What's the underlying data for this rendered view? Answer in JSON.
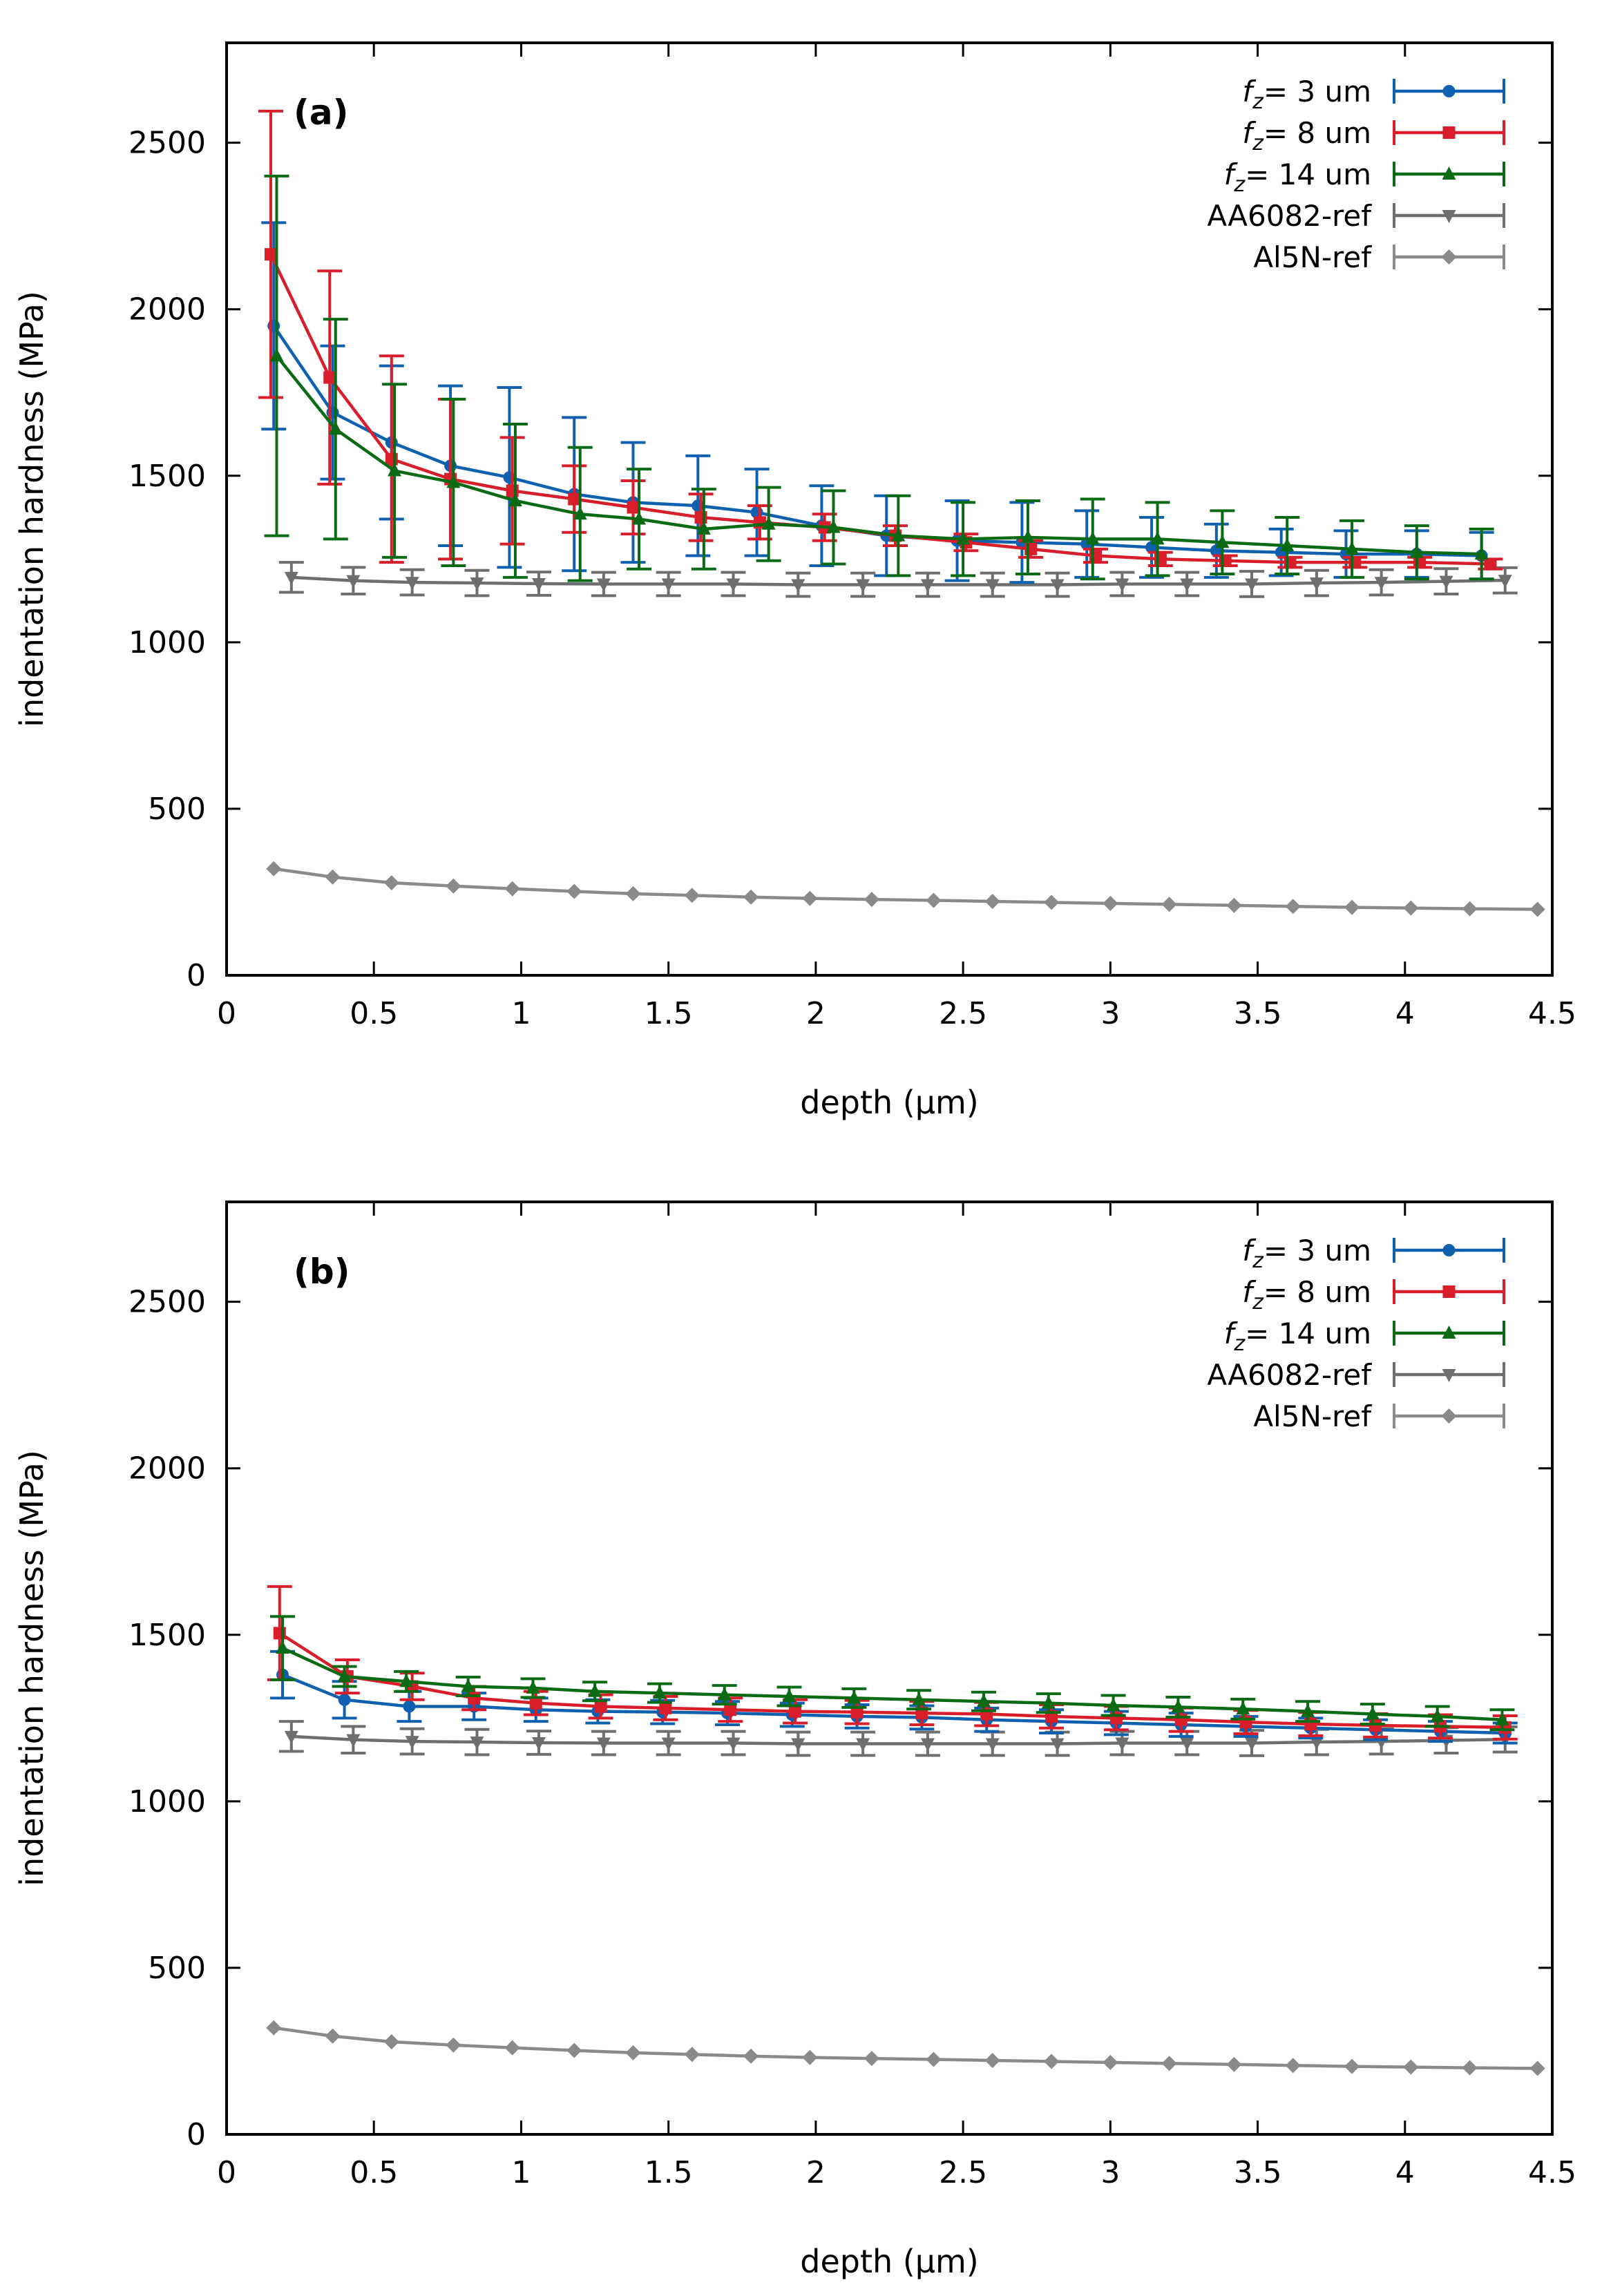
{
  "chart_data": [
    {
      "type": "line",
      "panel_label": "(a)",
      "xlabel": "depth (µm)",
      "ylabel": "indentation hardness (MPa)",
      "xlim": [
        0,
        4.5
      ],
      "ylim": [
        0,
        2800
      ],
      "xticks": [
        0,
        0.5,
        1,
        1.5,
        2,
        2.5,
        3,
        3.5,
        4,
        4.5
      ],
      "xtick_labels": [
        "0",
        "0.5",
        "1",
        "1.5",
        "2",
        "2.5",
        "3",
        "3.5",
        "4",
        "4.5"
      ],
      "yticks": [
        0,
        500,
        1000,
        1500,
        2000,
        2500
      ],
      "ytick_labels": [
        "0",
        "500",
        "1000",
        "1500",
        "2000",
        "2500"
      ],
      "legend_position": "top-right",
      "series": [
        {
          "name": "fz= 3 um",
          "legend_prefix": "f",
          "legend_sub": "z",
          "legend_suffix": "= 3 um",
          "color": "#1060b0",
          "marker": "circle",
          "errorbars": true,
          "x": [
            0.16,
            0.36,
            0.56,
            0.76,
            0.96,
            1.18,
            1.38,
            1.6,
            1.8,
            2.02,
            2.24,
            2.48,
            2.7,
            2.92,
            3.14,
            3.36,
            3.58,
            3.8,
            4.04,
            4.26
          ],
          "y": [
            1950,
            1690,
            1600,
            1530,
            1495,
            1445,
            1420,
            1410,
            1390,
            1350,
            1320,
            1305,
            1300,
            1295,
            1285,
            1275,
            1270,
            1265,
            1265,
            1260
          ],
          "err": [
            310,
            200,
            230,
            240,
            270,
            230,
            180,
            150,
            130,
            120,
            120,
            120,
            120,
            100,
            90,
            80,
            70,
            70,
            70,
            70
          ]
        },
        {
          "name": "fz= 8 um",
          "legend_prefix": "f",
          "legend_sub": "z",
          "legend_suffix": "= 8 um",
          "color": "#d81e2a",
          "marker": "square",
          "errorbars": true,
          "x": [
            0.15,
            0.35,
            0.56,
            0.76,
            0.97,
            1.18,
            1.38,
            1.61,
            1.81,
            2.03,
            2.27,
            2.51,
            2.73,
            2.95,
            3.17,
            3.39,
            3.61,
            3.83,
            4.05,
            4.29
          ],
          "y": [
            2165,
            1795,
            1550,
            1490,
            1455,
            1430,
            1405,
            1375,
            1360,
            1345,
            1320,
            1300,
            1280,
            1260,
            1250,
            1245,
            1240,
            1240,
            1240,
            1235
          ],
          "err": [
            430,
            320,
            310,
            240,
            160,
            100,
            80,
            70,
            50,
            40,
            30,
            25,
            25,
            20,
            20,
            15,
            15,
            15,
            15,
            15
          ]
        },
        {
          "name": "fz= 14 um",
          "legend_prefix": "f",
          "legend_sub": "z",
          "legend_suffix": "= 14 um",
          "color": "#0a6b14",
          "marker": "triangle",
          "errorbars": true,
          "x": [
            0.17,
            0.37,
            0.57,
            0.77,
            0.98,
            1.2,
            1.4,
            1.62,
            1.84,
            2.06,
            2.28,
            2.5,
            2.72,
            2.94,
            3.16,
            3.38,
            3.6,
            3.82,
            4.04,
            4.26
          ],
          "y": [
            1860,
            1640,
            1515,
            1480,
            1425,
            1385,
            1370,
            1340,
            1355,
            1345,
            1320,
            1310,
            1315,
            1310,
            1310,
            1300,
            1290,
            1280,
            1270,
            1265
          ],
          "err": [
            540,
            330,
            260,
            250,
            230,
            200,
            150,
            120,
            110,
            110,
            120,
            110,
            110,
            120,
            110,
            95,
            85,
            85,
            80,
            75
          ]
        },
        {
          "name": "AA6082-ref",
          "legend_prefix": "AA6082-ref",
          "legend_sub": "",
          "legend_suffix": "",
          "color": "#6e6e6e",
          "marker": "triangle-down",
          "errorbars": true,
          "x": [
            0.22,
            0.43,
            0.63,
            0.85,
            1.06,
            1.28,
            1.5,
            1.72,
            1.94,
            2.16,
            2.38,
            2.6,
            2.82,
            3.04,
            3.26,
            3.48,
            3.7,
            3.92,
            4.14,
            4.34
          ],
          "y": [
            1195,
            1185,
            1180,
            1178,
            1176,
            1175,
            1175,
            1175,
            1173,
            1173,
            1173,
            1173,
            1173,
            1175,
            1175,
            1175,
            1178,
            1180,
            1183,
            1186
          ],
          "err": [
            45,
            40,
            38,
            38,
            35,
            35,
            35,
            35,
            35,
            35,
            35,
            35,
            35,
            35,
            35,
            38,
            38,
            38,
            38,
            38
          ]
        },
        {
          "name": "Al5N-ref",
          "legend_prefix": "Al5N-ref",
          "legend_sub": "",
          "legend_suffix": "",
          "color": "#8a8a8a",
          "marker": "diamond",
          "errorbars": false,
          "x": [
            0.16,
            0.36,
            0.56,
            0.77,
            0.97,
            1.18,
            1.38,
            1.58,
            1.78,
            1.98,
            2.19,
            2.4,
            2.6,
            2.8,
            3.0,
            3.2,
            3.42,
            3.62,
            3.82,
            4.02,
            4.22,
            4.45
          ],
          "y": [
            320,
            295,
            278,
            268,
            260,
            252,
            245,
            240,
            235,
            231,
            228,
            225,
            222,
            219,
            216,
            213,
            210,
            207,
            204,
            202,
            200,
            198
          ],
          "err": []
        }
      ]
    },
    {
      "type": "line",
      "panel_label": "(b)",
      "xlabel": "depth (µm)",
      "ylabel": "indentation hardness (MPa)",
      "xlim": [
        0,
        4.5
      ],
      "ylim": [
        0,
        2800
      ],
      "xticks": [
        0,
        0.5,
        1,
        1.5,
        2,
        2.5,
        3,
        3.5,
        4,
        4.5
      ],
      "xtick_labels": [
        "0",
        "0.5",
        "1",
        "1.5",
        "2",
        "2.5",
        "3",
        "3.5",
        "4",
        "4.5"
      ],
      "yticks": [
        0,
        500,
        1000,
        1500,
        2000,
        2500
      ],
      "ytick_labels": [
        "0",
        "500",
        "1000",
        "1500",
        "2000",
        "2500"
      ],
      "legend_position": "top-right",
      "series": [
        {
          "name": "fz= 3 um",
          "legend_prefix": "f",
          "legend_sub": "z",
          "legend_suffix": "= 3 um",
          "color": "#1060b0",
          "marker": "circle",
          "errorbars": true,
          "x": [
            0.19,
            0.4,
            0.62,
            0.84,
            1.05,
            1.26,
            1.48,
            1.7,
            1.92,
            2.14,
            2.36,
            2.58,
            2.8,
            3.02,
            3.24,
            3.46,
            3.68,
            3.9,
            4.12,
            4.34
          ],
          "y": [
            1380,
            1305,
            1285,
            1285,
            1275,
            1270,
            1268,
            1265,
            1260,
            1255,
            1252,
            1245,
            1240,
            1235,
            1230,
            1225,
            1220,
            1215,
            1210,
            1205
          ],
          "err": [
            70,
            55,
            45,
            40,
            35,
            35,
            35,
            35,
            35,
            35,
            35,
            35,
            35,
            35,
            35,
            30,
            30,
            30,
            30,
            30
          ]
        },
        {
          "name": "fz= 8 um",
          "legend_prefix": "f",
          "legend_sub": "z",
          "legend_suffix": "= 8 um",
          "color": "#d81e2a",
          "marker": "square",
          "errorbars": true,
          "x": [
            0.18,
            0.41,
            0.63,
            0.84,
            1.05,
            1.27,
            1.49,
            1.71,
            1.93,
            2.14,
            2.36,
            2.58,
            2.8,
            3.02,
            3.24,
            3.46,
            3.68,
            3.9,
            4.12,
            4.34
          ],
          "y": [
            1505,
            1375,
            1345,
            1310,
            1295,
            1285,
            1280,
            1275,
            1270,
            1268,
            1265,
            1262,
            1255,
            1250,
            1245,
            1238,
            1232,
            1228,
            1225,
            1222
          ],
          "err": [
            140,
            50,
            40,
            35,
            35,
            35,
            35,
            35,
            35,
            35,
            35,
            35,
            35,
            35,
            35,
            35,
            35,
            35,
            35,
            35
          ]
        },
        {
          "name": "fz= 14 um",
          "legend_prefix": "f",
          "legend_sub": "z",
          "legend_suffix": "= 14 um",
          "color": "#0a6b14",
          "marker": "triangle",
          "errorbars": true,
          "x": [
            0.19,
            0.4,
            0.61,
            0.82,
            1.04,
            1.25,
            1.47,
            1.69,
            1.91,
            2.13,
            2.35,
            2.57,
            2.79,
            3.01,
            3.23,
            3.45,
            3.67,
            3.89,
            4.11,
            4.33
          ],
          "y": [
            1460,
            1375,
            1360,
            1345,
            1340,
            1330,
            1325,
            1320,
            1315,
            1310,
            1305,
            1300,
            1295,
            1288,
            1283,
            1277,
            1270,
            1262,
            1255,
            1245
          ],
          "err": [
            95,
            30,
            30,
            28,
            28,
            28,
            28,
            28,
            28,
            28,
            28,
            28,
            28,
            30,
            30,
            30,
            30,
            30,
            30,
            30
          ]
        },
        {
          "name": "AA6082-ref",
          "legend_prefix": "AA6082-ref",
          "legend_sub": "",
          "legend_suffix": "",
          "color": "#6e6e6e",
          "marker": "triangle-down",
          "errorbars": true,
          "x": [
            0.22,
            0.43,
            0.63,
            0.85,
            1.06,
            1.28,
            1.5,
            1.72,
            1.94,
            2.16,
            2.38,
            2.6,
            2.82,
            3.04,
            3.26,
            3.48,
            3.7,
            3.92,
            4.14,
            4.34
          ],
          "y": [
            1195,
            1185,
            1180,
            1178,
            1176,
            1175,
            1175,
            1175,
            1173,
            1173,
            1173,
            1173,
            1173,
            1175,
            1175,
            1175,
            1178,
            1180,
            1183,
            1186
          ],
          "err": [
            45,
            40,
            38,
            38,
            35,
            35,
            35,
            35,
            35,
            35,
            35,
            35,
            35,
            35,
            35,
            38,
            38,
            38,
            38,
            38
          ]
        },
        {
          "name": "Al5N-ref",
          "legend_prefix": "Al5N-ref",
          "legend_sub": "",
          "legend_suffix": "",
          "color": "#8a8a8a",
          "marker": "diamond",
          "errorbars": false,
          "x": [
            0.16,
            0.36,
            0.56,
            0.77,
            0.97,
            1.18,
            1.38,
            1.58,
            1.78,
            1.98,
            2.19,
            2.4,
            2.6,
            2.8,
            3.0,
            3.2,
            3.42,
            3.62,
            3.82,
            4.02,
            4.22,
            4.45
          ],
          "y": [
            320,
            295,
            278,
            268,
            260,
            252,
            245,
            240,
            235,
            231,
            228,
            225,
            222,
            219,
            216,
            213,
            210,
            207,
            204,
            202,
            200,
            198
          ],
          "err": []
        }
      ]
    }
  ]
}
